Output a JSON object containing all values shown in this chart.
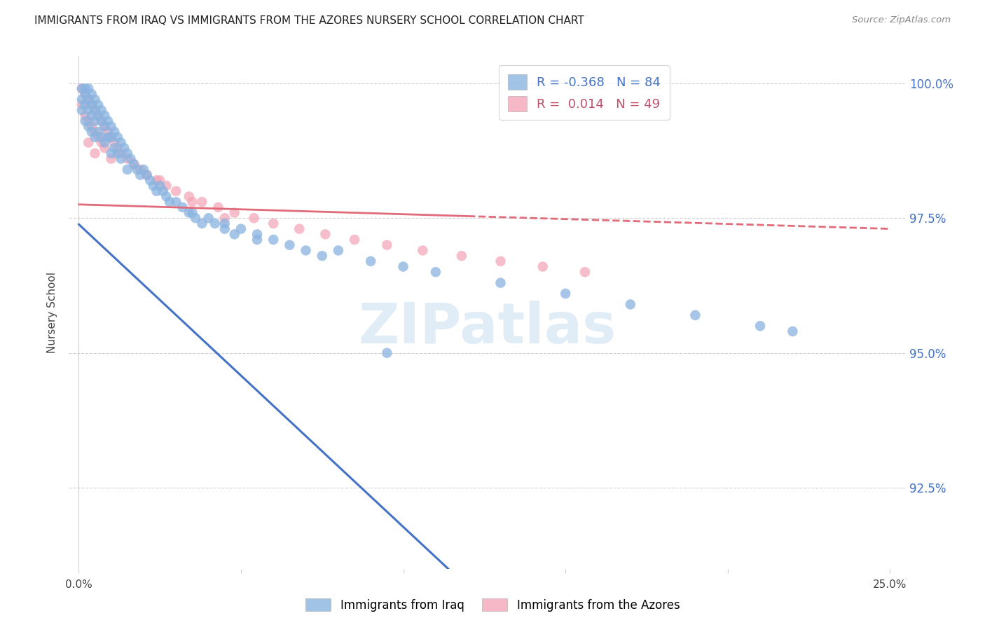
{
  "title": "IMMIGRANTS FROM IRAQ VS IMMIGRANTS FROM THE AZORES NURSERY SCHOOL CORRELATION CHART",
  "source": "Source: ZipAtlas.com",
  "ylabel": "Nursery School",
  "ytick_labels": [
    "92.5%",
    "95.0%",
    "97.5%",
    "100.0%"
  ],
  "ytick_values": [
    0.925,
    0.95,
    0.975,
    1.0
  ],
  "xlim": [
    0.0,
    0.25
  ],
  "ylim": [
    0.91,
    1.005
  ],
  "blue_color": "#8ab4e0",
  "pink_color": "#f4a7b9",
  "blue_line_color": "#4472c4",
  "pink_line_color": "#e06c7a",
  "legend_r_blue": "-0.368",
  "legend_n_blue": "84",
  "legend_r_pink": " 0.014",
  "legend_n_pink": "49",
  "watermark": "ZIPatlas",
  "background_color": "#ffffff",
  "blue_scatter_x": [
    0.001,
    0.001,
    0.001,
    0.002,
    0.002,
    0.002,
    0.002,
    0.003,
    0.003,
    0.003,
    0.003,
    0.004,
    0.004,
    0.004,
    0.004,
    0.005,
    0.005,
    0.005,
    0.005,
    0.006,
    0.006,
    0.006,
    0.007,
    0.007,
    0.007,
    0.008,
    0.008,
    0.008,
    0.009,
    0.009,
    0.01,
    0.01,
    0.01,
    0.011,
    0.011,
    0.012,
    0.012,
    0.013,
    0.013,
    0.014,
    0.015,
    0.015,
    0.016,
    0.017,
    0.018,
    0.019,
    0.02,
    0.021,
    0.022,
    0.023,
    0.024,
    0.025,
    0.026,
    0.027,
    0.028,
    0.03,
    0.032,
    0.034,
    0.036,
    0.038,
    0.04,
    0.042,
    0.045,
    0.048,
    0.05,
    0.055,
    0.06,
    0.065,
    0.07,
    0.075,
    0.08,
    0.09,
    0.1,
    0.11,
    0.13,
    0.15,
    0.17,
    0.19,
    0.21,
    0.22,
    0.035,
    0.045,
    0.055,
    0.095
  ],
  "blue_scatter_y": [
    0.999,
    0.997,
    0.995,
    0.999,
    0.998,
    0.996,
    0.993,
    0.999,
    0.997,
    0.995,
    0.992,
    0.998,
    0.996,
    0.994,
    0.991,
    0.997,
    0.995,
    0.993,
    0.99,
    0.996,
    0.994,
    0.991,
    0.995,
    0.993,
    0.99,
    0.994,
    0.992,
    0.989,
    0.993,
    0.99,
    0.992,
    0.99,
    0.987,
    0.991,
    0.988,
    0.99,
    0.987,
    0.989,
    0.986,
    0.988,
    0.987,
    0.984,
    0.986,
    0.985,
    0.984,
    0.983,
    0.984,
    0.983,
    0.982,
    0.981,
    0.98,
    0.981,
    0.98,
    0.979,
    0.978,
    0.978,
    0.977,
    0.976,
    0.975,
    0.974,
    0.975,
    0.974,
    0.973,
    0.972,
    0.973,
    0.972,
    0.971,
    0.97,
    0.969,
    0.968,
    0.969,
    0.967,
    0.966,
    0.965,
    0.963,
    0.961,
    0.959,
    0.957,
    0.955,
    0.954,
    0.976,
    0.974,
    0.971,
    0.95
  ],
  "pink_scatter_x": [
    0.001,
    0.001,
    0.002,
    0.002,
    0.003,
    0.003,
    0.003,
    0.004,
    0.004,
    0.005,
    0.005,
    0.005,
    0.006,
    0.006,
    0.007,
    0.007,
    0.008,
    0.008,
    0.009,
    0.01,
    0.01,
    0.011,
    0.012,
    0.013,
    0.015,
    0.017,
    0.019,
    0.021,
    0.024,
    0.027,
    0.03,
    0.034,
    0.038,
    0.043,
    0.048,
    0.054,
    0.06,
    0.068,
    0.076,
    0.085,
    0.095,
    0.106,
    0.118,
    0.13,
    0.143,
    0.156,
    0.025,
    0.035,
    0.045
  ],
  "pink_scatter_y": [
    0.999,
    0.996,
    0.998,
    0.994,
    0.997,
    0.993,
    0.989,
    0.996,
    0.992,
    0.995,
    0.991,
    0.987,
    0.994,
    0.99,
    0.993,
    0.989,
    0.992,
    0.988,
    0.991,
    0.99,
    0.986,
    0.989,
    0.988,
    0.987,
    0.986,
    0.985,
    0.984,
    0.983,
    0.982,
    0.981,
    0.98,
    0.979,
    0.978,
    0.977,
    0.976,
    0.975,
    0.974,
    0.973,
    0.972,
    0.971,
    0.97,
    0.969,
    0.968,
    0.967,
    0.966,
    0.965,
    0.982,
    0.978,
    0.975
  ]
}
